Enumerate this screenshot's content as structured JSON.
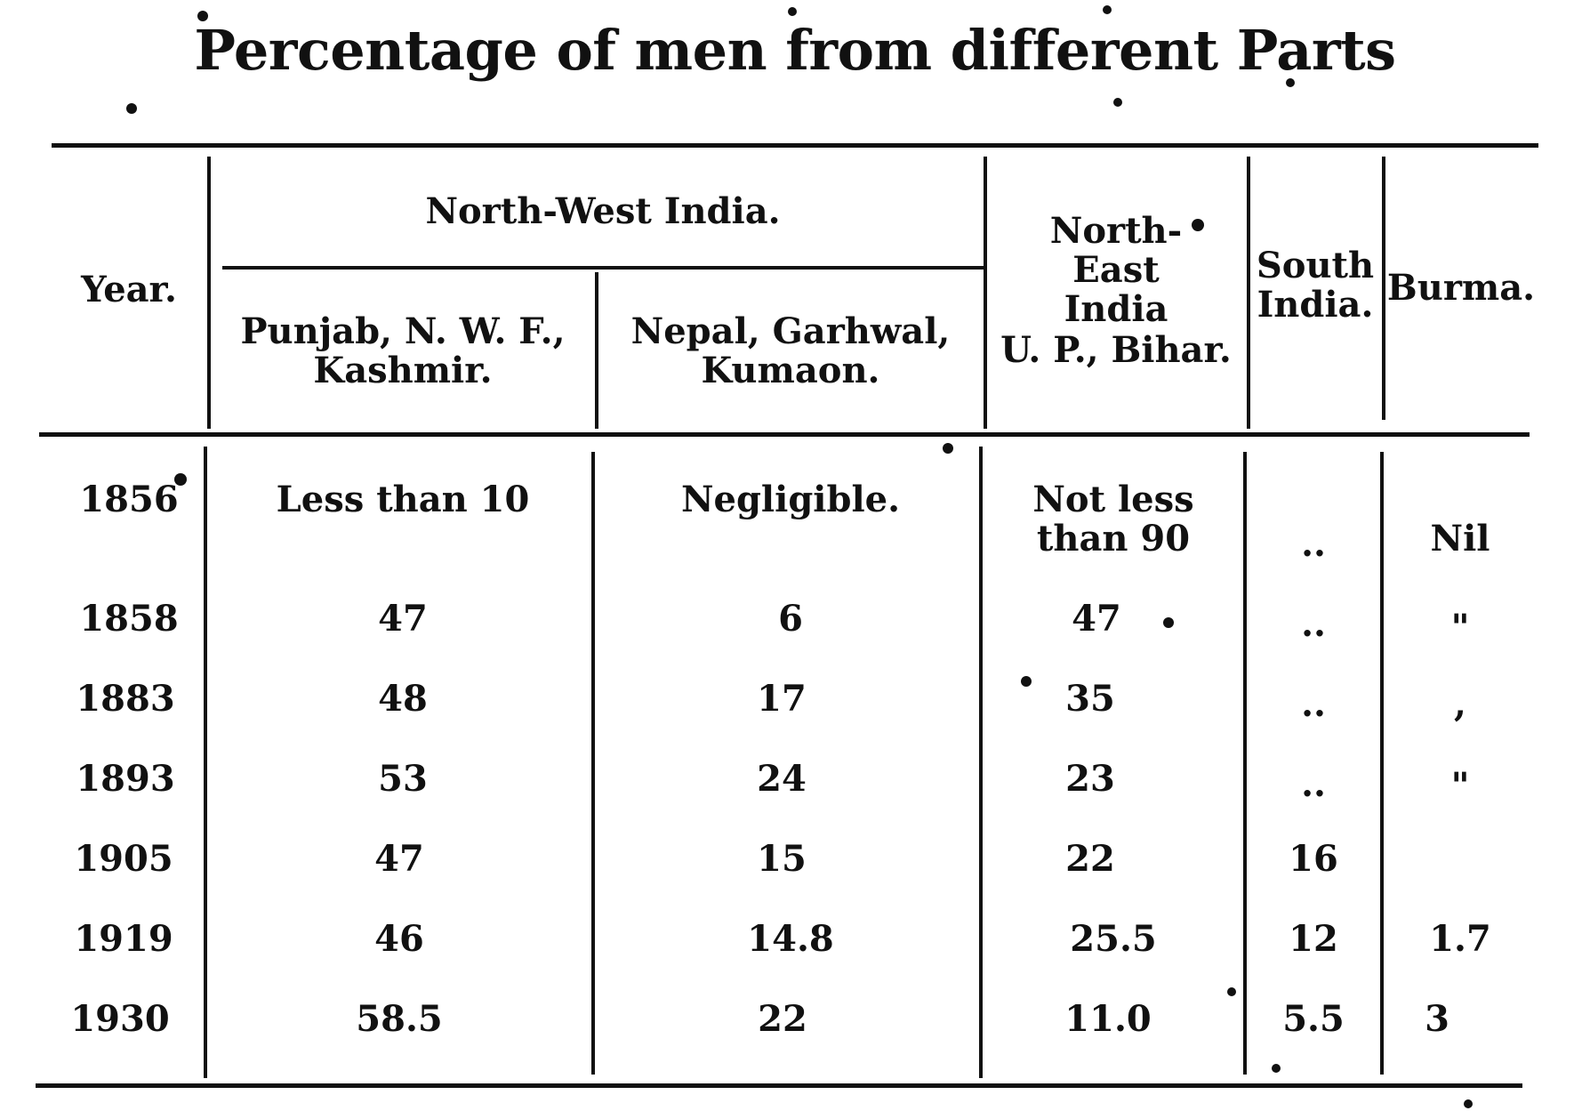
{
  "title": "Percentage of men from different Parts",
  "headers": {
    "year": "Year.",
    "north_west_group": "North-West India.",
    "punjab_line1": "Punjab, N. W. F.,",
    "punjab_line2": "Kashmir.",
    "nepal_line1": "Nepal, Garhwal,",
    "nepal_line2": "Kumaon.",
    "ne_line1": "North-",
    "ne_line2": "East",
    "ne_line3": "India",
    "ne_line4": "U. P., Bihar.",
    "south_line1": "South",
    "south_line2": "India.",
    "burma": "Burma."
  },
  "rows": [
    {
      "year": "1856",
      "punjab": "Less than 10",
      "nepal": "Negligible.",
      "ne_line1": "Not less",
      "ne_line2": "than 90",
      "south": "..",
      "burma": "Nil"
    },
    {
      "year": "1858",
      "punjab": "47",
      "nepal": "6",
      "ne": "47",
      "south": "..",
      "burma": "\""
    },
    {
      "year": "1883",
      "punjab": "48",
      "nepal": "17",
      "ne": "35",
      "south": "..",
      "burma": ","
    },
    {
      "year": "1893",
      "punjab": "53",
      "nepal": "24",
      "ne": "23",
      "south": "..",
      "burma": "\""
    },
    {
      "year": "1905",
      "punjab": "47",
      "nepal": "15",
      "ne": "22",
      "south": "16",
      "burma": ""
    },
    {
      "year": "1919",
      "punjab": "46",
      "nepal": "14.8",
      "ne": "25.5",
      "south": "12",
      "burma": "1.7"
    },
    {
      "year": "1930",
      "punjab": "58.5",
      "nepal": "22",
      "ne": "11.0",
      "south": "5.5",
      "burma": "3"
    }
  ]
}
